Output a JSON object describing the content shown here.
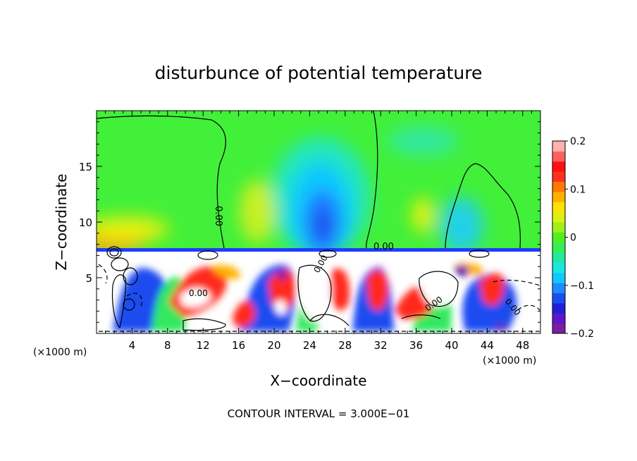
{
  "chart_data": {
    "type": "heatmap",
    "title": "disturbunce of potential temperature",
    "xlabel": "X−coordinate",
    "ylabel": "Z−coordinate",
    "x_unit_label": "(×1000 m)",
    "x_unit_label_right": "(×1000 m)",
    "footer": "CONTOUR INTERVAL = 3.000E−01",
    "xlim": [
      0,
      50
    ],
    "ylim": [
      0,
      20
    ],
    "x_ticks": [
      "4",
      "8",
      "12",
      "16",
      "20",
      "24",
      "28",
      "32",
      "36",
      "40",
      "44",
      "48"
    ],
    "y_ticks": [
      "5",
      "10",
      "15"
    ],
    "colorbar": {
      "range": [
        -0.2,
        0.2
      ],
      "tick_labels": [
        "0.2",
        "0.1",
        "0",
        "−0.1",
        "−0.2"
      ],
      "colors": [
        "#7a1fa0",
        "#5a18c8",
        "#2020d8",
        "#1850f0",
        "#1e8cff",
        "#10c8ff",
        "#18e8e0",
        "#22e8a0",
        "#33f055",
        "#50f020",
        "#a0f018",
        "#dcf010",
        "#ffe000",
        "#ffb000",
        "#ff7800",
        "#ff3020",
        "#ff1010",
        "#ff6060",
        "#ffb0b0"
      ]
    },
    "contour_labels": [
      "0.00",
      "0.00",
      "0.00",
      "0.00",
      "0.00",
      "0.00",
      "0.00"
    ]
  }
}
